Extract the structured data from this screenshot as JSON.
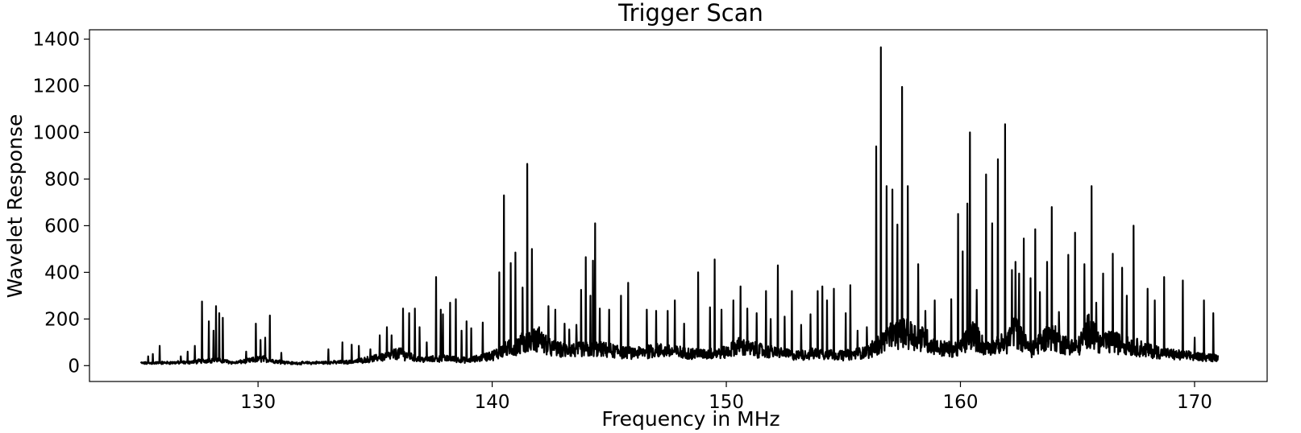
{
  "chart_data": {
    "type": "line",
    "title": "Trigger Scan",
    "xlabel": "Frequency in MHz",
    "ylabel": "Wavelet Response",
    "xlim": [
      122.8,
      173.1
    ],
    "ylim": [
      -68,
      1440
    ],
    "xticks": [
      130,
      140,
      150,
      160,
      170
    ],
    "yticks": [
      0,
      200,
      400,
      600,
      800,
      1000,
      1200,
      1400
    ],
    "grid": false,
    "legend": "none",
    "line_color": "#000000",
    "x_range_data": [
      125.0,
      171.0
    ],
    "baseline_envelope": [
      [
        125.0,
        8
      ],
      [
        127.0,
        12
      ],
      [
        128.2,
        25
      ],
      [
        129.0,
        10
      ],
      [
        130.2,
        30
      ],
      [
        130.6,
        20
      ],
      [
        131.5,
        8
      ],
      [
        134.0,
        14
      ],
      [
        135.5,
        40
      ],
      [
        136.0,
        55
      ],
      [
        137.0,
        25
      ],
      [
        138.0,
        30
      ],
      [
        139.0,
        22
      ],
      [
        140.0,
        45
      ],
      [
        140.5,
        70
      ],
      [
        141.5,
        110
      ],
      [
        142.0,
        120
      ],
      [
        142.5,
        80
      ],
      [
        143.0,
        70
      ],
      [
        144.5,
        75
      ],
      [
        146.0,
        55
      ],
      [
        147.0,
        70
      ],
      [
        148.0,
        60
      ],
      [
        149.0,
        50
      ],
      [
        150.0,
        60
      ],
      [
        150.5,
        90
      ],
      [
        151.0,
        75
      ],
      [
        152.0,
        60
      ],
      [
        153.0,
        45
      ],
      [
        154.0,
        55
      ],
      [
        155.0,
        45
      ],
      [
        156.0,
        60
      ],
      [
        156.5,
        95
      ],
      [
        157.0,
        130
      ],
      [
        157.5,
        150
      ],
      [
        158.0,
        140
      ],
      [
        158.5,
        120
      ],
      [
        159.0,
        80
      ],
      [
        159.5,
        75
      ],
      [
        160.0,
        80
      ],
      [
        160.5,
        150
      ],
      [
        161.0,
        90
      ],
      [
        161.5,
        85
      ],
      [
        162.0,
        110
      ],
      [
        162.3,
        170
      ],
      [
        162.6,
        120
      ],
      [
        163.0,
        70
      ],
      [
        163.8,
        140
      ],
      [
        164.5,
        95
      ],
      [
        165.0,
        80
      ],
      [
        165.5,
        170
      ],
      [
        166.0,
        100
      ],
      [
        166.5,
        110
      ],
      [
        167.0,
        95
      ],
      [
        167.5,
        85
      ],
      [
        168.0,
        70
      ],
      [
        169.0,
        50
      ],
      [
        170.0,
        40
      ],
      [
        171.0,
        35
      ]
    ],
    "peaks": [
      [
        125.3,
        40
      ],
      [
        125.5,
        50
      ],
      [
        125.8,
        85
      ],
      [
        126.7,
        40
      ],
      [
        127.0,
        60
      ],
      [
        127.3,
        85
      ],
      [
        127.6,
        275
      ],
      [
        127.9,
        190
      ],
      [
        128.1,
        150
      ],
      [
        128.2,
        255
      ],
      [
        128.35,
        225
      ],
      [
        128.5,
        205
      ],
      [
        129.5,
        60
      ],
      [
        129.9,
        180
      ],
      [
        130.1,
        110
      ],
      [
        130.3,
        120
      ],
      [
        130.5,
        215
      ],
      [
        131.0,
        55
      ],
      [
        133.0,
        70
      ],
      [
        133.6,
        100
      ],
      [
        134.0,
        90
      ],
      [
        134.3,
        85
      ],
      [
        134.8,
        70
      ],
      [
        135.2,
        130
      ],
      [
        135.5,
        165
      ],
      [
        135.7,
        130
      ],
      [
        136.2,
        245
      ],
      [
        136.45,
        225
      ],
      [
        136.7,
        245
      ],
      [
        136.9,
        165
      ],
      [
        137.2,
        100
      ],
      [
        137.6,
        380
      ],
      [
        137.8,
        240
      ],
      [
        137.9,
        220
      ],
      [
        138.2,
        270
      ],
      [
        138.45,
        285
      ],
      [
        138.7,
        150
      ],
      [
        138.9,
        190
      ],
      [
        139.1,
        160
      ],
      [
        139.6,
        185
      ],
      [
        140.3,
        400
      ],
      [
        140.5,
        730
      ],
      [
        140.8,
        440
      ],
      [
        141.0,
        485
      ],
      [
        141.3,
        335
      ],
      [
        141.5,
        865
      ],
      [
        141.7,
        500
      ],
      [
        142.0,
        165
      ],
      [
        142.4,
        255
      ],
      [
        142.7,
        240
      ],
      [
        143.1,
        180
      ],
      [
        143.3,
        155
      ],
      [
        143.6,
        175
      ],
      [
        143.8,
        325
      ],
      [
        144.0,
        465
      ],
      [
        144.2,
        300
      ],
      [
        144.3,
        450
      ],
      [
        144.4,
        610
      ],
      [
        144.6,
        245
      ],
      [
        145.0,
        240
      ],
      [
        145.5,
        300
      ],
      [
        145.8,
        355
      ],
      [
        146.6,
        240
      ],
      [
        147.0,
        235
      ],
      [
        147.5,
        235
      ],
      [
        147.8,
        280
      ],
      [
        148.2,
        180
      ],
      [
        148.8,
        400
      ],
      [
        149.3,
        250
      ],
      [
        149.5,
        455
      ],
      [
        149.8,
        240
      ],
      [
        150.3,
        280
      ],
      [
        150.6,
        340
      ],
      [
        150.9,
        245
      ],
      [
        151.3,
        225
      ],
      [
        151.7,
        320
      ],
      [
        151.9,
        200
      ],
      [
        152.2,
        430
      ],
      [
        152.5,
        210
      ],
      [
        152.8,
        320
      ],
      [
        153.2,
        175
      ],
      [
        153.6,
        220
      ],
      [
        153.9,
        320
      ],
      [
        154.1,
        340
      ],
      [
        154.3,
        280
      ],
      [
        154.6,
        330
      ],
      [
        155.1,
        225
      ],
      [
        155.3,
        345
      ],
      [
        155.6,
        150
      ],
      [
        156.0,
        165
      ],
      [
        156.4,
        940
      ],
      [
        156.6,
        1365
      ],
      [
        156.85,
        770
      ],
      [
        157.1,
        755
      ],
      [
        157.3,
        605
      ],
      [
        157.5,
        1195
      ],
      [
        157.75,
        770
      ],
      [
        158.2,
        435
      ],
      [
        158.5,
        235
      ],
      [
        158.9,
        280
      ],
      [
        159.6,
        285
      ],
      [
        159.9,
        650
      ],
      [
        160.1,
        490
      ],
      [
        160.3,
        695
      ],
      [
        160.4,
        1000
      ],
      [
        160.7,
        325
      ],
      [
        161.1,
        820
      ],
      [
        161.35,
        610
      ],
      [
        161.6,
        885
      ],
      [
        161.9,
        1035
      ],
      [
        162.2,
        410
      ],
      [
        162.35,
        445
      ],
      [
        162.5,
        395
      ],
      [
        162.7,
        545
      ],
      [
        163.0,
        375
      ],
      [
        163.2,
        585
      ],
      [
        163.4,
        315
      ],
      [
        163.7,
        445
      ],
      [
        163.9,
        680
      ],
      [
        164.2,
        230
      ],
      [
        164.6,
        475
      ],
      [
        164.9,
        570
      ],
      [
        165.3,
        435
      ],
      [
        165.6,
        770
      ],
      [
        165.8,
        270
      ],
      [
        166.1,
        395
      ],
      [
        166.5,
        480
      ],
      [
        166.9,
        420
      ],
      [
        167.1,
        300
      ],
      [
        167.4,
        600
      ],
      [
        168.0,
        330
      ],
      [
        168.3,
        280
      ],
      [
        168.7,
        380
      ],
      [
        169.5,
        365
      ],
      [
        170.0,
        120
      ],
      [
        170.4,
        280
      ],
      [
        170.8,
        225
      ]
    ]
  }
}
